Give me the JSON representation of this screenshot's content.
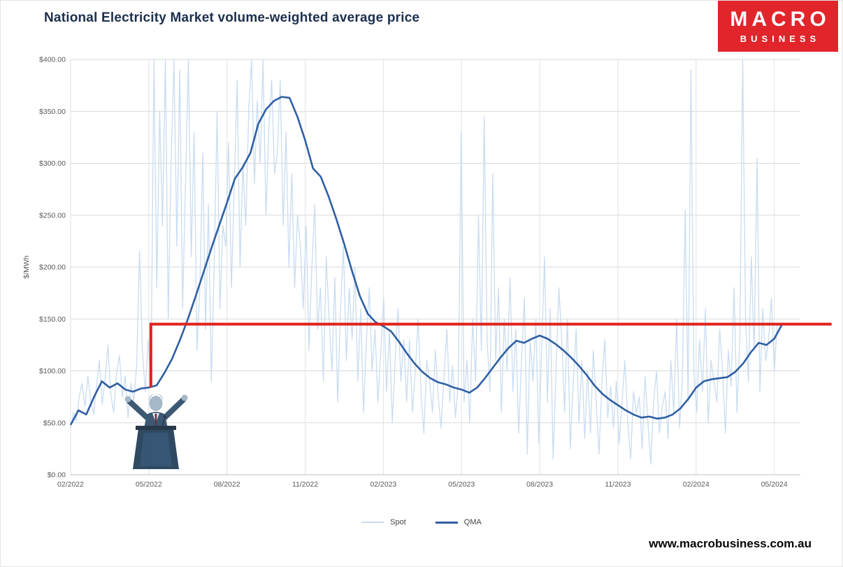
{
  "title": "National Electricity Market volume-weighted average price",
  "logo": {
    "line1": "MACRO",
    "line2": "BUSINESS",
    "bg_color": "#e2242b"
  },
  "footer": {
    "url": "www.macrobusiness.com.au"
  },
  "legend": [
    {
      "label": "Spot",
      "color": "#c9dcf0"
    },
    {
      "label": "QMA",
      "color": "#2e5fa3"
    }
  ],
  "chart_data": {
    "type": "line",
    "title": "National Electricity Market volume-weighted average price",
    "xlabel": "",
    "ylabel": "$/MWh",
    "ylim": [
      0,
      400
    ],
    "xlim": [
      0,
      28
    ],
    "grid": true,
    "legend_position": "bottom",
    "y_ticks": [
      {
        "v": 0,
        "label": "$0.00"
      },
      {
        "v": 50,
        "label": "$50.00"
      },
      {
        "v": 100,
        "label": "$100.00"
      },
      {
        "v": 150,
        "label": "$150.00"
      },
      {
        "v": 200,
        "label": "$200.00"
      },
      {
        "v": 250,
        "label": "$250.00"
      },
      {
        "v": 300,
        "label": "$300.00"
      },
      {
        "v": 350,
        "label": "$350.00"
      },
      {
        "v": 400,
        "label": "$400.00"
      }
    ],
    "x_ticks": [
      {
        "v": 0,
        "label": "02/2022"
      },
      {
        "v": 3,
        "label": "05/2022"
      },
      {
        "v": 6,
        "label": "08/2022"
      },
      {
        "v": 9,
        "label": "11/2022"
      },
      {
        "v": 12,
        "label": "02/2023"
      },
      {
        "v": 15,
        "label": "05/2023"
      },
      {
        "v": 18,
        "label": "08/2023"
      },
      {
        "v": 21,
        "label": "11/2023"
      },
      {
        "v": 24,
        "label": "02/2024"
      },
      {
        "v": 27,
        "label": "05/2024"
      }
    ],
    "series": [
      {
        "name": "Spot",
        "color": "#c9dcf0",
        "width": 1.3,
        "x_start": 0,
        "x_step": 0.1102,
        "values": [
          45,
          60,
          52,
          75,
          88,
          66,
          95,
          72,
          58,
          85,
          110,
          68,
          92,
          125,
          78,
          60,
          98,
          115,
          75,
          95,
          55,
          88,
          70,
          105,
          215,
          120,
          80,
          130,
          90,
          400,
          180,
          350,
          240,
          400,
          150,
          300,
          400,
          220,
          390,
          160,
          280,
          400,
          210,
          330,
          120,
          180,
          310,
          140,
          260,
          90,
          200,
          350,
          160,
          240,
          220,
          320,
          180,
          280,
          380,
          200,
          300,
          240,
          350,
          400,
          280,
          360,
          300,
          400,
          250,
          330,
          380,
          290,
          310,
          380,
          240,
          330,
          200,
          290,
          180,
          250,
          220,
          160,
          240,
          120,
          200,
          260,
          140,
          180,
          90,
          210,
          150,
          100,
          190,
          70,
          160,
          220,
          110,
          180,
          130,
          200,
          90,
          160,
          60,
          130,
          180,
          100,
          140,
          70,
          120,
          170,
          80,
          140,
          50,
          110,
          160,
          90,
          130,
          70,
          130,
          60,
          100,
          150,
          80,
          40,
          110,
          90,
          60,
          120,
          75,
          45,
          95,
          140,
          70,
          105,
          55,
          90,
          330,
          70,
          110,
          50,
          150,
          90,
          250,
          120,
          345,
          130,
          80,
          290,
          110,
          180,
          60,
          150,
          100,
          190,
          80,
          140,
          40,
          110,
          170,
          20,
          130,
          90,
          150,
          30,
          120,
          210,
          70,
          160,
          15,
          100,
          180,
          130,
          60,
          150,
          25,
          90,
          140,
          50,
          110,
          35,
          100,
          40,
          120,
          70,
          20,
          90,
          130,
          55,
          85,
          45,
          90,
          30,
          70,
          110,
          50,
          15,
          80,
          60,
          75,
          25,
          95,
          50,
          10,
          70,
          100,
          40,
          65,
          80,
          35,
          110,
          60,
          150,
          45,
          90,
          255,
          70,
          390,
          100,
          60,
          130,
          80,
          160,
          50,
          110,
          90,
          70,
          140,
          100,
          40,
          120,
          85,
          180,
          60,
          130,
          400,
          150,
          90,
          210,
          120,
          305,
          80,
          160,
          110,
          130,
          170,
          100,
          145
        ]
      },
      {
        "name": "QMA",
        "color": "#2e5fa3",
        "width": 2.6,
        "x_start": 0,
        "x_step": 0.3,
        "values": [
          48,
          62,
          58,
          75,
          90,
          84,
          88,
          82,
          80,
          83,
          84,
          86,
          98,
          112,
          130,
          150,
          172,
          195,
          218,
          240,
          262,
          285,
          296,
          310,
          338,
          352,
          360,
          364,
          363,
          345,
          322,
          295,
          287,
          268,
          246,
          222,
          196,
          172,
          155,
          147,
          143,
          138,
          128,
          117,
          107,
          99,
          93,
          89,
          87,
          84,
          82,
          79,
          84,
          93,
          103,
          113,
          122,
          129,
          127,
          131,
          134,
          131,
          126,
          120,
          113,
          105,
          96,
          86,
          78,
          72,
          67,
          62,
          58,
          55,
          56,
          54,
          55,
          58,
          64,
          73,
          84,
          90,
          92,
          93,
          94,
          99,
          107,
          118,
          127,
          125,
          131,
          145
        ]
      }
    ],
    "annotation": {
      "description": "red reference line from QMA at 05/2022 up to $145 then horizontal to right edge",
      "x": 3.08,
      "y_base": 84,
      "value": 145,
      "x_end": 29.2,
      "color": "#e0231c",
      "width": 4
    }
  }
}
